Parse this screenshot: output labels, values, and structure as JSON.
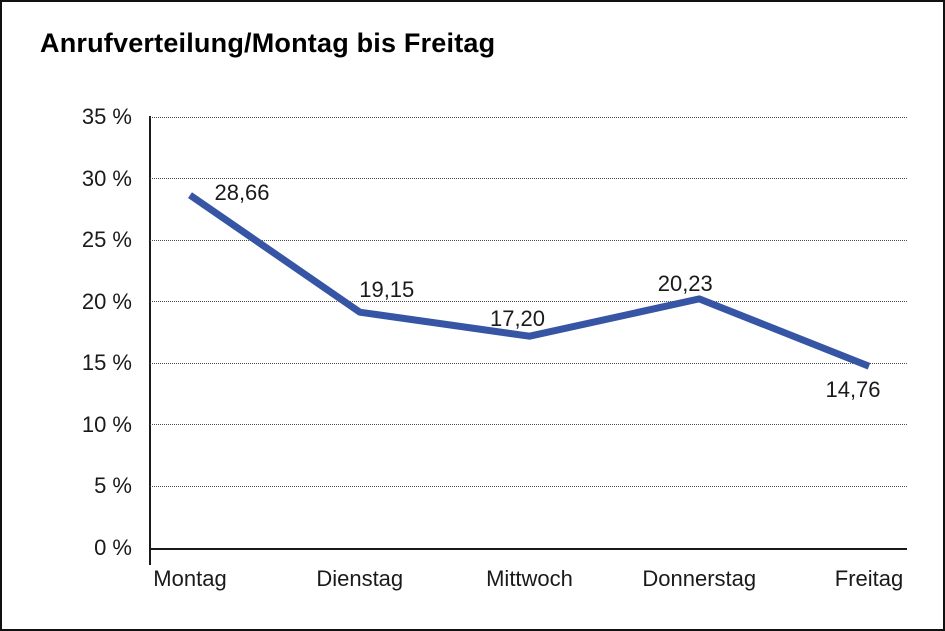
{
  "chart_data": {
    "type": "line",
    "title": "Anrufverteilung/Montag bis Freitag",
    "categories": [
      "Montag",
      "Dienstag",
      "Mittwoch",
      "Donnerstag",
      "Freitag"
    ],
    "series": [
      {
        "name": "Anrufverteilung",
        "values": [
          28.66,
          19.15,
          17.2,
          20.23,
          14.76
        ],
        "point_labels": [
          "28,66",
          "19,15",
          "17,20",
          "20,23",
          "14,76"
        ]
      }
    ],
    "xlabel": "",
    "ylabel": "",
    "ylim": [
      0,
      35
    ],
    "ytick_values": [
      0,
      5,
      10,
      15,
      20,
      25,
      30,
      35
    ],
    "ytick_labels": [
      "0 %",
      "5 %",
      "10 %",
      "15 %",
      "20 %",
      "25 %",
      "30 %",
      "35 %"
    ],
    "grid": "horizontal-dotted",
    "legend": "none",
    "colors": {
      "line": "#3655A5",
      "axis": "#1a1a1a",
      "gridline": "#4d4d4d",
      "text": "#1a1a1a"
    }
  }
}
